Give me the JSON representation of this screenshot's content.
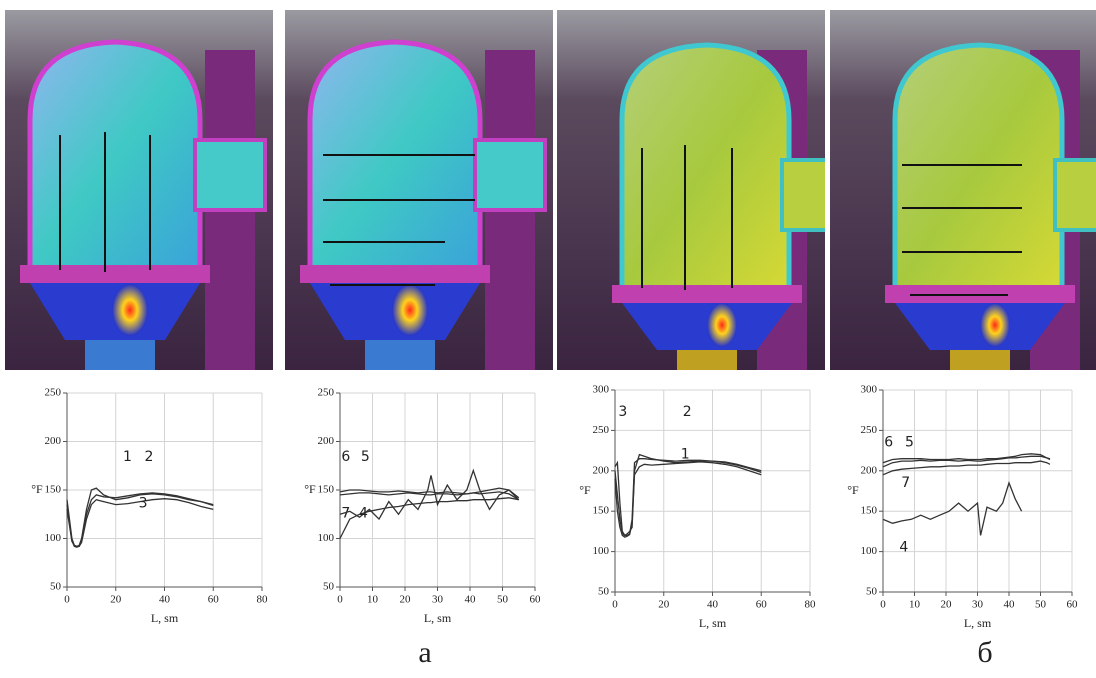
{
  "chart_data": [
    {
      "type": "line",
      "xlabel": "L, sm",
      "ylabel": "°F",
      "xlim": [
        0,
        80
      ],
      "xticks": [
        0,
        20,
        40,
        60,
        80
      ],
      "ylim": [
        50,
        250
      ],
      "yticks": [
        50,
        100,
        150,
        200,
        250
      ],
      "grid": true,
      "x": [
        0,
        2,
        3,
        4,
        5,
        6,
        8,
        10,
        12,
        15,
        20,
        25,
        30,
        35,
        40,
        45,
        50,
        55,
        60
      ],
      "series": [
        {
          "name": "1",
          "color": "#333333",
          "values": [
            140,
            100,
            93,
            92,
            93,
            100,
            130,
            150,
            152,
            145,
            140,
            142,
            145,
            146,
            145,
            143,
            140,
            138,
            135
          ]
        },
        {
          "name": "2",
          "color": "#333333",
          "values": [
            135,
            98,
            92,
            91,
            92,
            98,
            125,
            140,
            145,
            143,
            142,
            144,
            146,
            147,
            146,
            144,
            141,
            138,
            134
          ]
        },
        {
          "name": "3",
          "color": "#333333",
          "values": [
            130,
            97,
            93,
            92,
            92,
            96,
            120,
            135,
            140,
            138,
            135,
            136,
            138,
            140,
            141,
            140,
            137,
            133,
            130
          ]
        }
      ]
    },
    {
      "type": "line",
      "xlabel": "L, sm",
      "ylabel": "°F",
      "xlim": [
        0,
        60
      ],
      "xticks": [
        0,
        10,
        20,
        30,
        40,
        50,
        60
      ],
      "ylim": [
        50,
        250
      ],
      "yticks": [
        50,
        100,
        150,
        200,
        250
      ],
      "grid": true,
      "x": [
        0,
        3,
        6,
        9,
        12,
        15,
        18,
        21,
        24,
        27,
        28,
        30,
        33,
        36,
        39,
        41,
        43,
        46,
        49,
        52,
        55
      ],
      "series": [
        {
          "name": "6",
          "color": "#333333",
          "values": [
            145,
            146,
            147,
            147,
            146,
            145,
            146,
            147,
            146,
            145,
            145,
            146,
            146,
            145,
            146,
            147,
            146,
            147,
            148,
            146,
            140
          ]
        },
        {
          "name": "5",
          "color": "#333333",
          "values": [
            148,
            150,
            150,
            149,
            148,
            148,
            149,
            148,
            147,
            148,
            148,
            147,
            148,
            147,
            146,
            147,
            148,
            150,
            152,
            150,
            142
          ]
        },
        {
          "name": "7",
          "color": "#333333",
          "values": [
            100,
            120,
            125,
            128,
            130,
            132,
            133,
            135,
            136,
            137,
            137,
            138,
            138,
            139,
            139,
            140,
            140,
            140,
            141,
            142,
            140
          ]
        },
        {
          "name": "4",
          "color": "#333333",
          "values": [
            125,
            128,
            122,
            130,
            120,
            138,
            125,
            140,
            130,
            150,
            165,
            135,
            155,
            140,
            150,
            170,
            150,
            130,
            145,
            150,
            140
          ]
        }
      ]
    },
    {
      "type": "line",
      "xlabel": "L, sm",
      "ylabel": "°F",
      "xlim": [
        0,
        80
      ],
      "xticks": [
        0,
        20,
        40,
        60,
        80
      ],
      "ylim": [
        50,
        300
      ],
      "yticks": [
        50,
        100,
        150,
        200,
        250,
        300
      ],
      "grid": true,
      "x": [
        0,
        1,
        2,
        3,
        4,
        5,
        6,
        7,
        8,
        10,
        12,
        15,
        20,
        25,
        30,
        35,
        40,
        45,
        50,
        55,
        60
      ],
      "series": [
        {
          "name": "3",
          "color": "#333333",
          "values": [
            205,
            210,
            160,
            125,
            120,
            122,
            125,
            130,
            200,
            220,
            218,
            215,
            212,
            210,
            211,
            212,
            212,
            211,
            208,
            204,
            200
          ]
        },
        {
          "name": "2",
          "color": "#333333",
          "values": [
            200,
            170,
            140,
            122,
            120,
            120,
            122,
            140,
            210,
            215,
            215,
            214,
            213,
            212,
            213,
            213,
            212,
            210,
            207,
            203,
            198
          ]
        },
        {
          "name": "1",
          "color": "#333333",
          "values": [
            190,
            150,
            130,
            120,
            118,
            119,
            121,
            135,
            195,
            205,
            208,
            207,
            208,
            209,
            210,
            211,
            210,
            208,
            205,
            200,
            195
          ]
        }
      ]
    },
    {
      "type": "line",
      "xlabel": "L, sm",
      "ylabel": "°F",
      "xlim": [
        0,
        60
      ],
      "xticks": [
        0,
        10,
        20,
        30,
        40,
        50,
        60
      ],
      "ylim": [
        50,
        300
      ],
      "yticks": [
        50,
        100,
        150,
        200,
        250,
        300
      ],
      "grid": true,
      "x": [
        0,
        3,
        6,
        9,
        12,
        15,
        18,
        21,
        24,
        27,
        30,
        31,
        33,
        36,
        38,
        40,
        42,
        44,
        47,
        50,
        52,
        53
      ],
      "series": [
        {
          "name": "6",
          "color": "#333333",
          "values": [
            205,
            210,
            212,
            212,
            213,
            212,
            213,
            213,
            212,
            213,
            212,
            212,
            213,
            214,
            215,
            216,
            216,
            217,
            218,
            218,
            216,
            215
          ]
        },
        {
          "name": "5",
          "color": "#333333",
          "values": [
            210,
            214,
            215,
            215,
            215,
            214,
            214,
            214,
            215,
            214,
            214,
            214,
            215,
            215,
            216,
            217,
            218,
            220,
            221,
            220,
            216,
            214
          ]
        },
        {
          "name": "7",
          "color": "#333333",
          "values": [
            195,
            200,
            202,
            203,
            204,
            205,
            205,
            206,
            206,
            207,
            207,
            207,
            208,
            209,
            209,
            209,
            210,
            210,
            210,
            212,
            210,
            208
          ]
        },
        {
          "name": "4",
          "color": "#333333",
          "values": [
            140,
            135,
            138,
            140,
            145,
            140,
            145,
            150,
            160,
            150,
            160,
            120,
            155,
            150,
            160,
            185,
            165,
            150,
            null,
            null,
            null,
            null
          ]
        }
      ]
    }
  ],
  "captions": [
    "а",
    "б"
  ]
}
